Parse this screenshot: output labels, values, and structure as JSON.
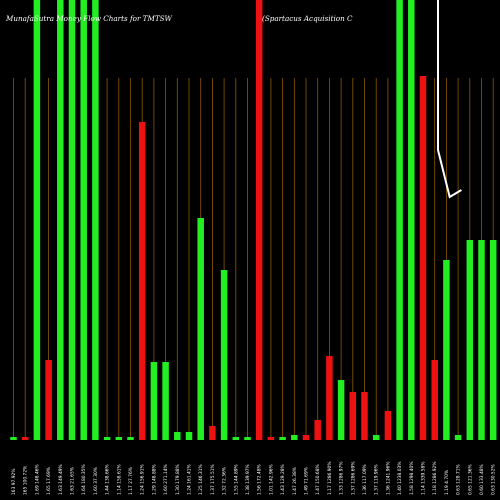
{
  "chart_data": {
    "type": "bar",
    "title_left": "MunafaSutra  Money Flow  Charts for TMTSW",
    "title_right": "(Spartacus Acquisition  C",
    "ylim": [
      0,
      440
    ],
    "grid": "vertical lines",
    "colors": {
      "background": "#000000",
      "grid": "#8a5a00",
      "up": "#22ee22",
      "down": "#ee1111",
      "line": "#ffffff"
    },
    "categories": [
      "163 97.92%",
      "165 100.72%",
      "1.69 148.46%",
      "1.65 17.69%",
      "1.63 149.49%",
      "1.63 21.65%",
      "1.64 180.35%",
      "1.60 37.30%",
      "1.44 138.66%",
      "1.14 158.61%",
      "1.17 27.76%",
      "1.24 156.91%",
      "1.29 148.88%",
      "1.60 271.14%",
      "1.30 179.88%",
      "1.24 161.41%",
      "1.25 146.31%",
      "1.37 175.51%",
      "1.32 72.36%",
      "1.55 144.89%",
      "1.38 139.97%",
      "1.56 172.48%",
      "1.01 142.96%",
      "1.43 129.28%",
      "1.47 26.38%",
      "1.49 71.69%",
      "1.47 150.68%",
      "1.17 1286.90%",
      "1.33 1286.97%",
      "1.37 1286.69%",
      "1.36 117.09%",
      "1.37 119.96%",
      "1.36 1241.96%",
      "1.40 1238.03%",
      "1.58 1298.40%",
      "1.14 1339.58%",
      "1.18 1286.92%",
      "1.19 4.70%",
      "0.63 128.71%",
      "0.65 121.36%",
      "0.60 133.48%",
      "0.63 130.52%"
    ],
    "values": [
      3,
      3,
      440,
      80,
      440,
      440,
      440,
      440,
      3,
      3,
      3,
      318,
      78,
      78,
      8,
      8,
      222,
      14,
      170,
      3,
      3,
      440,
      3,
      3,
      5,
      5,
      20,
      84,
      60,
      48,
      48,
      5,
      29,
      440,
      440,
      364,
      80,
      180,
      5,
      200,
      200,
      200
    ],
    "colors_by_bar": [
      "up",
      "down",
      "up",
      "down",
      "up",
      "up",
      "up",
      "up",
      "up",
      "up",
      "up",
      "down",
      "up",
      "up",
      "up",
      "up",
      "up",
      "down",
      "up",
      "up",
      "up",
      "down",
      "down",
      "up",
      "up",
      "down",
      "down",
      "down",
      "up",
      "down",
      "down",
      "up",
      "down",
      "up",
      "up",
      "down",
      "down",
      "up",
      "up",
      "up",
      "up",
      "up"
    ],
    "line": {
      "name": "",
      "points": [
        [
          36,
          0
        ],
        [
          36,
          150
        ],
        [
          37,
          197
        ],
        [
          38,
          190
        ]
      ]
    }
  }
}
